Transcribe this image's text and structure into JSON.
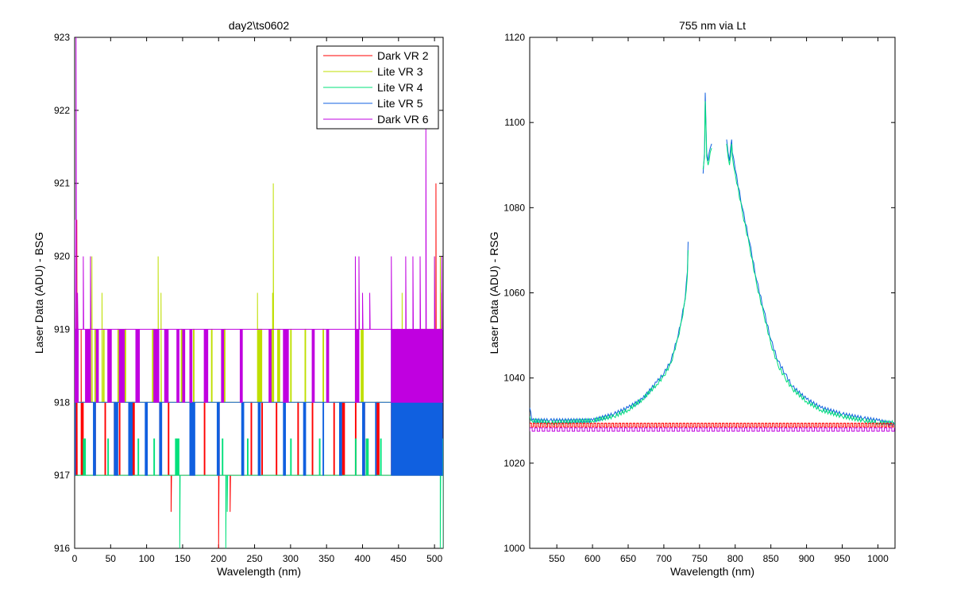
{
  "figure": {
    "background": "#ffffff"
  },
  "chart_data": [
    {
      "type": "line",
      "title": "day2\\ts0602",
      "xlabel": "Wavelength (nm)",
      "ylabel": "Laser Data (ADU) - BSG",
      "xlim": [
        0,
        512
      ],
      "ylim": [
        916,
        923
      ],
      "xticks": [
        0,
        50,
        100,
        150,
        200,
        250,
        300,
        350,
        400,
        450,
        500
      ],
      "yticks": [
        916,
        917,
        918,
        919,
        920,
        921,
        922,
        923
      ],
      "legend_position": "top-right",
      "series": [
        {
          "name": "Dark VR 2",
          "color": "#ff0000",
          "baseline": 917,
          "alt": 918,
          "segments": [
            [
              0,
              3
            ],
            [
              9,
              12
            ],
            [
              28,
              30
            ],
            [
              42,
              44
            ],
            [
              55,
              57
            ],
            [
              62,
              64
            ],
            [
              80,
              84
            ],
            [
              100,
              102
            ],
            [
              118,
              120
            ],
            [
              130,
              132
            ],
            [
              160,
              162
            ],
            [
              180,
              182
            ],
            [
              200,
              202
            ],
            [
              245,
              247
            ],
            [
              260,
              262
            ],
            [
              280,
              282
            ],
            [
              310,
              312
            ],
            [
              330,
              332
            ],
            [
              360,
              362
            ],
            [
              372,
              376
            ],
            [
              390,
              392
            ],
            [
              400,
              404
            ],
            [
              420,
              424
            ],
            [
              440,
              512
            ]
          ],
          "spikes": [
            [
              3,
              920.5
            ],
            [
              9,
              919
            ],
            [
              134,
              916.5
            ],
            [
              200,
              916
            ],
            [
              216,
              916.5
            ],
            [
              502,
              921
            ],
            [
              510,
              919.5
            ]
          ]
        },
        {
          "name": "Lite VR 3",
          "color": "#bfdf00",
          "baseline": 918,
          "alt": 919,
          "segments": [
            [
              0,
              6
            ],
            [
              18,
              22
            ],
            [
              28,
              30
            ],
            [
              40,
              42
            ],
            [
              60,
              62
            ],
            [
              70,
              72
            ],
            [
              108,
              112
            ],
            [
              148,
              150
            ],
            [
              165,
              167
            ],
            [
              190,
              192
            ],
            [
              208,
              210
            ],
            [
              255,
              260
            ],
            [
              272,
              276
            ],
            [
              282,
              286
            ],
            [
              300,
              302
            ],
            [
              320,
              322
            ],
            [
              345,
              347
            ],
            [
              398,
              402
            ],
            [
              448,
              450
            ],
            [
              465,
              467
            ],
            [
              480,
              512
            ]
          ],
          "spikes": [
            [
              0,
              919.5
            ],
            [
              22,
              920
            ],
            [
              24,
              920
            ],
            [
              38,
              919.5
            ],
            [
              116,
              920
            ],
            [
              120,
              919.5
            ],
            [
              254,
              919.5
            ],
            [
              275,
              919.5
            ],
            [
              276,
              921
            ],
            [
              390,
              919.5
            ],
            [
              455,
              919.5
            ],
            [
              500,
              920
            ],
            [
              508,
              920
            ]
          ]
        },
        {
          "name": "Lite VR 4",
          "color": "#00e07a",
          "baseline": 917,
          "alt": 917.5,
          "segments": [
            [
              12,
              16
            ],
            [
              46,
              48
            ],
            [
              88,
              90
            ],
            [
              110,
              112
            ],
            [
              140,
              146
            ],
            [
              205,
              207
            ],
            [
              240,
              242
            ],
            [
              300,
              302
            ],
            [
              340,
              342
            ],
            [
              390,
              392
            ],
            [
              405,
              409
            ],
            [
              425,
              427
            ],
            [
              445,
              512
            ]
          ],
          "spikes": [
            [
              146,
              916
            ],
            [
              210,
              916
            ],
            [
              212,
              916.5
            ],
            [
              508,
              916
            ],
            [
              512,
              916
            ]
          ]
        },
        {
          "name": "Lite VR 5",
          "color": "#1060e0",
          "baseline": 918,
          "alt": 917,
          "segments": [
            [
              0,
              1
            ],
            [
              26,
              30
            ],
            [
              55,
              60
            ],
            [
              75,
              80
            ],
            [
              98,
              102
            ],
            [
              118,
              122
            ],
            [
              160,
              168
            ],
            [
              198,
              202
            ],
            [
              232,
              236
            ],
            [
              255,
              259
            ],
            [
              290,
              294
            ],
            [
              318,
              322
            ],
            [
              345,
              347
            ],
            [
              368,
              372
            ],
            [
              400,
              404
            ],
            [
              418,
              420
            ],
            [
              440,
              512
            ]
          ],
          "spikes": [
            [
              0,
              918
            ],
            [
              440,
              919
            ],
            [
              470,
              919
            ],
            [
              490,
              919
            ],
            [
              510,
              919
            ]
          ]
        },
        {
          "name": "Dark VR 6",
          "color": "#c000e0",
          "baseline": 919,
          "alt": 918,
          "segments": [
            [
              0,
              5
            ],
            [
              15,
              22
            ],
            [
              30,
              34
            ],
            [
              46,
              52
            ],
            [
              62,
              70
            ],
            [
              85,
              90
            ],
            [
              110,
              118
            ],
            [
              125,
              130
            ],
            [
              142,
              146
            ],
            [
              150,
              154
            ],
            [
              160,
              164
            ],
            [
              180,
              186
            ],
            [
              204,
              208
            ],
            [
              230,
              234
            ],
            [
              270,
              274
            ],
            [
              290,
              298
            ],
            [
              330,
              334
            ],
            [
              350,
              354
            ],
            [
              390,
              396
            ],
            [
              440,
              512
            ]
          ],
          "spikes": [
            [
              0,
              920.5
            ],
            [
              2,
              923
            ],
            [
              4,
              919.5
            ],
            [
              12,
              920
            ],
            [
              22,
              920
            ],
            [
              390,
              920
            ],
            [
              395,
              920
            ],
            [
              400,
              919.5
            ],
            [
              410,
              919.5
            ],
            [
              440,
              920
            ],
            [
              460,
              920
            ],
            [
              470,
              920
            ],
            [
              480,
              920
            ],
            [
              488,
              921.8
            ],
            [
              500,
              920
            ],
            [
              510,
              920
            ]
          ]
        }
      ]
    },
    {
      "type": "line",
      "title": "755 nm via Lt",
      "xlabel": "Wavelength (nm)",
      "ylabel": "Laser Data (ADU) - RSG",
      "xlim": [
        512,
        1024
      ],
      "ylim": [
        1000,
        1120
      ],
      "xticks": [
        550,
        600,
        650,
        700,
        750,
        800,
        850,
        900,
        950,
        1000
      ],
      "yticks": [
        1000,
        1020,
        1040,
        1060,
        1080,
        1100,
        1120
      ],
      "series": [
        {
          "role": "peak",
          "color": "#1060e0",
          "points": [
            [
              512,
              1033
            ],
            [
              515,
              1030
            ],
            [
              540,
              1030
            ],
            [
              600,
              1030
            ],
            [
              630,
              1031.5
            ],
            [
              650,
              1033
            ],
            [
              670,
              1035
            ],
            [
              690,
              1039
            ],
            [
              700,
              1041
            ],
            [
              710,
              1044
            ],
            [
              720,
              1050
            ],
            [
              725,
              1054
            ],
            [
              730,
              1059
            ],
            [
              733,
              1065
            ],
            [
              734,
              1072
            ],
            [
              735,
              null
            ],
            [
              754,
              null
            ],
            [
              755,
              1088
            ],
            [
              757,
              1093
            ],
            [
              758,
              1107
            ],
            [
              759,
              1100
            ],
            [
              760,
              1093
            ],
            [
              762,
              1091
            ],
            [
              765,
              1094
            ],
            [
              767,
              1095
            ],
            [
              768,
              null
            ],
            [
              787,
              null
            ],
            [
              788,
              1096
            ],
            [
              790,
              1093
            ],
            [
              792,
              1091
            ],
            [
              795,
              1096
            ],
            [
              796,
              1093
            ],
            [
              800,
              1089
            ],
            [
              810,
              1080
            ],
            [
              820,
              1072
            ],
            [
              830,
              1063
            ],
            [
              840,
              1056
            ],
            [
              850,
              1049
            ],
            [
              860,
              1044
            ],
            [
              870,
              1041
            ],
            [
              880,
              1038
            ],
            [
              900,
              1035
            ],
            [
              920,
              1033
            ],
            [
              950,
              1031.5
            ],
            [
              980,
              1030.5
            ],
            [
              1000,
              1030
            ],
            [
              1024,
              1029
            ]
          ]
        },
        {
          "role": "peak",
          "color": "#00e07a",
          "points": [
            [
              512,
              1031
            ],
            [
              515,
              1030
            ],
            [
              540,
              1029.5
            ],
            [
              600,
              1030
            ],
            [
              630,
              1031
            ],
            [
              650,
              1032.5
            ],
            [
              670,
              1035
            ],
            [
              690,
              1038.5
            ],
            [
              700,
              1040.5
            ],
            [
              710,
              1043.5
            ],
            [
              720,
              1049.5
            ],
            [
              725,
              1053.5
            ],
            [
              730,
              1058.5
            ],
            [
              733,
              1064
            ],
            [
              734,
              1070
            ],
            [
              735,
              null
            ],
            [
              754,
              null
            ],
            [
              755,
              1089
            ],
            [
              757,
              1092
            ],
            [
              758,
              1105
            ],
            [
              759,
              1099
            ],
            [
              760,
              1092
            ],
            [
              762,
              1090
            ],
            [
              765,
              1093
            ],
            [
              767,
              1094
            ],
            [
              768,
              null
            ],
            [
              787,
              null
            ],
            [
              788,
              1095
            ],
            [
              790,
              1092
            ],
            [
              792,
              1090
            ],
            [
              795,
              1095
            ],
            [
              796,
              1092
            ],
            [
              800,
              1088
            ],
            [
              810,
              1079
            ],
            [
              820,
              1071
            ],
            [
              830,
              1062
            ],
            [
              840,
              1055
            ],
            [
              850,
              1048
            ],
            [
              860,
              1043
            ],
            [
              870,
              1040
            ],
            [
              880,
              1037.5
            ],
            [
              900,
              1034.5
            ],
            [
              920,
              1032.5
            ],
            [
              950,
              1031
            ],
            [
              980,
              1030
            ],
            [
              1000,
              1029.5
            ],
            [
              1024,
              1029.5
            ]
          ]
        },
        {
          "role": "flat",
          "color": "#ff0000",
          "base": 1028.5,
          "amp": 0.9,
          "period": 5
        },
        {
          "role": "flat",
          "color": "#c000e0",
          "base": 1027.5,
          "amp": 0.8,
          "period": 7
        }
      ]
    }
  ]
}
